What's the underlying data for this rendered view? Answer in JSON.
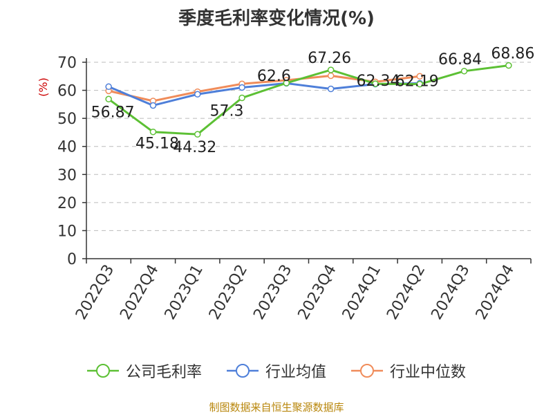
{
  "chart_data": {
    "type": "line",
    "title": "季度毛利率变化情况(%)",
    "ylabel": "(%)",
    "ylim": [
      0,
      70
    ],
    "yticks": [
      0,
      10,
      20,
      30,
      40,
      50,
      60,
      70
    ],
    "grid": true,
    "legend_position": "bottom",
    "categories": [
      "2022Q3",
      "2022Q4",
      "2023Q1",
      "2023Q2",
      "2023Q3",
      "2023Q4",
      "2024Q1",
      "2024Q2",
      "2024Q3",
      "2024Q4"
    ],
    "series": [
      {
        "name": "公司毛利率",
        "color": "#5cc034",
        "values": [
          56.87,
          45.18,
          44.32,
          57.3,
          62.6,
          67.26,
          62.34,
          62.19,
          66.84,
          68.86
        ],
        "labels": [
          "56.87",
          "45.18",
          "44.32",
          "57.3",
          "62.6",
          "67.26",
          "62.34",
          "62.19",
          "66.84",
          "68.86"
        ]
      },
      {
        "name": "行业均值",
        "color": "#4e7fd9",
        "values": [
          61.3,
          54.6,
          58.6,
          61.0,
          62.5,
          60.5,
          62.2,
          62.5,
          null,
          null
        ]
      },
      {
        "name": "行业中位数",
        "color": "#f08c5a",
        "values": [
          59.8,
          56.2,
          59.5,
          62.3,
          63.6,
          65.2,
          63.0,
          65.0,
          null,
          null
        ]
      }
    ]
  },
  "source_note": "制图数据来自恒生聚源数据库"
}
